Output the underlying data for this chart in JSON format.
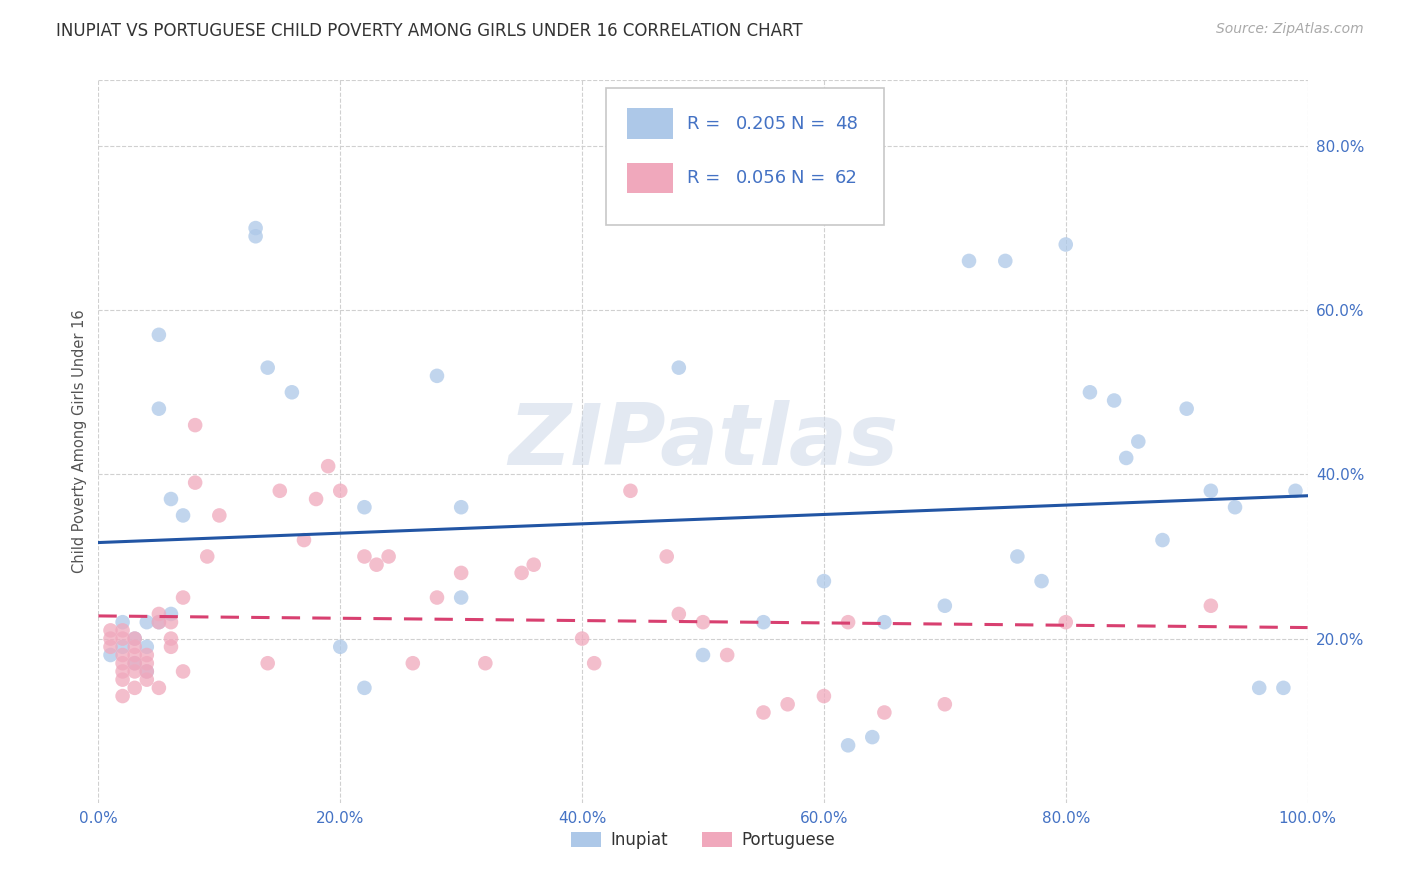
{
  "title": "INUPIAT VS PORTUGUESE CHILD POVERTY AMONG GIRLS UNDER 16 CORRELATION CHART",
  "source": "Source: ZipAtlas.com",
  "ylabel": "Child Poverty Among Girls Under 16",
  "watermark": "ZIPatlas",
  "inupiat_R": 0.205,
  "inupiat_N": 48,
  "inupiat_color": "#adc8e8",
  "inupiat_line_color": "#2255a4",
  "inupiat_x": [
    0.01,
    0.02,
    0.02,
    0.03,
    0.03,
    0.04,
    0.04,
    0.04,
    0.05,
    0.05,
    0.05,
    0.06,
    0.06,
    0.07,
    0.13,
    0.13,
    0.14,
    0.16,
    0.2,
    0.22,
    0.22,
    0.28,
    0.3,
    0.3,
    0.48,
    0.5,
    0.55,
    0.6,
    0.62,
    0.64,
    0.65,
    0.7,
    0.72,
    0.75,
    0.76,
    0.78,
    0.8,
    0.82,
    0.84,
    0.85,
    0.86,
    0.88,
    0.9,
    0.92,
    0.94,
    0.96,
    0.98,
    0.99
  ],
  "inupiat_y": [
    0.18,
    0.22,
    0.19,
    0.2,
    0.17,
    0.22,
    0.19,
    0.16,
    0.57,
    0.48,
    0.22,
    0.37,
    0.23,
    0.35,
    0.7,
    0.69,
    0.53,
    0.5,
    0.19,
    0.36,
    0.14,
    0.52,
    0.36,
    0.25,
    0.53,
    0.18,
    0.22,
    0.27,
    0.07,
    0.08,
    0.22,
    0.24,
    0.66,
    0.66,
    0.3,
    0.27,
    0.68,
    0.5,
    0.49,
    0.42,
    0.44,
    0.32,
    0.48,
    0.38,
    0.36,
    0.14,
    0.14,
    0.38
  ],
  "portuguese_R": 0.056,
  "portuguese_N": 62,
  "portuguese_color": "#f0a8bc",
  "portuguese_line_color": "#d84070",
  "portuguese_x": [
    0.01,
    0.01,
    0.01,
    0.02,
    0.02,
    0.02,
    0.02,
    0.02,
    0.02,
    0.02,
    0.03,
    0.03,
    0.03,
    0.03,
    0.03,
    0.03,
    0.04,
    0.04,
    0.04,
    0.04,
    0.05,
    0.05,
    0.05,
    0.06,
    0.06,
    0.06,
    0.07,
    0.07,
    0.08,
    0.08,
    0.09,
    0.1,
    0.14,
    0.15,
    0.17,
    0.18,
    0.19,
    0.2,
    0.22,
    0.23,
    0.24,
    0.26,
    0.28,
    0.3,
    0.32,
    0.35,
    0.36,
    0.4,
    0.41,
    0.44,
    0.47,
    0.48,
    0.5,
    0.52,
    0.55,
    0.57,
    0.6,
    0.62,
    0.65,
    0.7,
    0.8,
    0.92
  ],
  "portuguese_y": [
    0.19,
    0.2,
    0.21,
    0.13,
    0.15,
    0.16,
    0.17,
    0.18,
    0.2,
    0.21,
    0.14,
    0.16,
    0.17,
    0.18,
    0.19,
    0.2,
    0.15,
    0.16,
    0.17,
    0.18,
    0.14,
    0.22,
    0.23,
    0.19,
    0.2,
    0.22,
    0.16,
    0.25,
    0.46,
    0.39,
    0.3,
    0.35,
    0.17,
    0.38,
    0.32,
    0.37,
    0.41,
    0.38,
    0.3,
    0.29,
    0.3,
    0.17,
    0.25,
    0.28,
    0.17,
    0.28,
    0.29,
    0.2,
    0.17,
    0.38,
    0.3,
    0.23,
    0.22,
    0.18,
    0.11,
    0.12,
    0.13,
    0.22,
    0.11,
    0.12,
    0.22,
    0.24
  ],
  "xlim": [
    0.0,
    1.0
  ],
  "ylim": [
    0.0,
    0.88
  ],
  "xticks": [
    0.0,
    0.2,
    0.4,
    0.6,
    0.8,
    1.0
  ],
  "yticks_right": [
    0.2,
    0.4,
    0.6,
    0.8
  ],
  "ytick_right_labels": [
    "20.0%",
    "40.0%",
    "60.0%",
    "80.0%"
  ],
  "xtick_labels": [
    "0.0%",
    "20.0%",
    "40.0%",
    "60.0%",
    "80.0%",
    "100.0%"
  ],
  "bg_color": "#ffffff",
  "grid_color": "#d0d0d0",
  "title_fontsize": 12,
  "ylabel_fontsize": 10.5,
  "tick_fontsize": 11,
  "legend_fontsize": 13,
  "source_fontsize": 10,
  "marker_size": 110,
  "marker_alpha": 0.75,
  "line_width": 2.2,
  "legend_text_color": "#4472c4"
}
